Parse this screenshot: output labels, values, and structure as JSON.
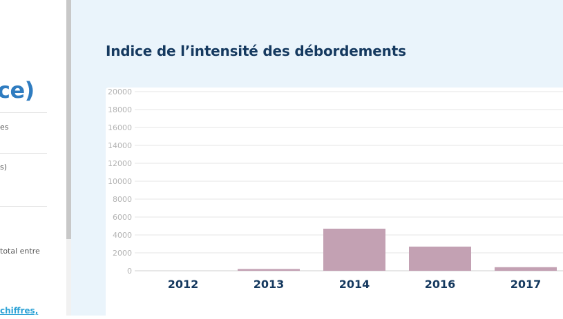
{
  "sidebar": {
    "heading_fragment": "ce)",
    "texts": [
      "es",
      "s)",
      "total entre"
    ],
    "link_text": "chiffres,"
  },
  "page": {
    "title": "Indice de l’intensité des débordements"
  },
  "colors": {
    "bar": "#c3a1b3",
    "title": "#15395f",
    "accent": "#2f7cc0",
    "panel_bg": "#eaf4fb"
  },
  "chart_data": {
    "type": "bar",
    "title": "",
    "xlabel": "",
    "ylabel": "",
    "categories": [
      "2012",
      "2013",
      "2014",
      "2016",
      "2017"
    ],
    "values": [
      0,
      200,
      4700,
      2700,
      400
    ],
    "ylim": [
      0,
      20000
    ],
    "yticks": [
      0,
      2000,
      4000,
      6000,
      8000,
      10000,
      12000,
      14000,
      16000,
      18000,
      20000
    ],
    "grid": true,
    "legend": "none"
  }
}
